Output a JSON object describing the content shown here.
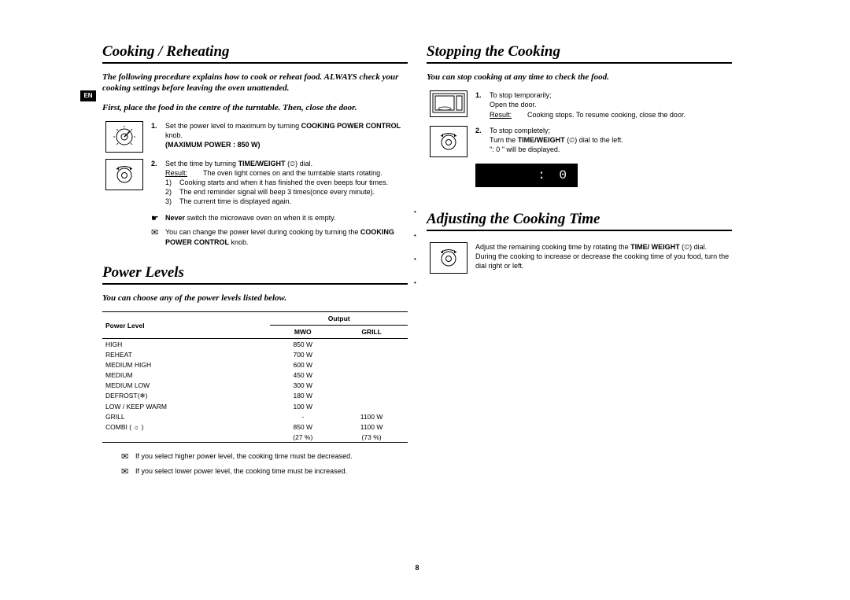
{
  "page_number": "8",
  "lang_badge": "EN",
  "left": {
    "section1": {
      "title": "Cooking / Reheating",
      "intro1": "The following procedure explains how to cook or reheat food. ALWAYS check your cooking settings before leaving the oven unattended.",
      "intro2": "First, place the food in the centre of the turntable. Then, close the door.",
      "step1": {
        "num": "1.",
        "text_a": "Set the power level to maximum by turning ",
        "bold_a": "COOKING POWER CONTROL",
        "text_b": " knob.",
        "bold_b": "(MAXIMUM POWER : 850 W)"
      },
      "step2": {
        "num": "2.",
        "text_a": "Set the time by turning ",
        "bold_a": "TIME/WEIGHT",
        "text_b": " (⏲) dial.",
        "result_label": "Result:",
        "result_text": "The oven light comes on and the turntable starts rotating.",
        "li1_n": "1)",
        "li1": "Cooking starts and when it has finished the oven beeps four times.",
        "li2_n": "2)",
        "li2": "The end reminder signal will beep 3 times(once every minute).",
        "li3_n": "3)",
        "li3": "The current time is displayed again."
      },
      "note1_sym": "☛",
      "note1_a": "Never",
      "note1_b": " switch the microwave oven on when it is empty.",
      "note2_sym": "✉",
      "note2_a": "You can change the power level during cooking by turning the ",
      "note2_b": "COOKING POWER CONTROL",
      "note2_c": " knob."
    },
    "section2": {
      "title": "Power Levels",
      "intro": "You can choose any of the power levels listed below.",
      "headers": {
        "c1": "Power Level",
        "c2": "Output",
        "c2a": "MWO",
        "c2b": "GRILL"
      },
      "rows": [
        {
          "name": "HIGH",
          "mwo": "850 W",
          "grill": ""
        },
        {
          "name": "REHEAT",
          "mwo": "700 W",
          "grill": ""
        },
        {
          "name": "MEDIUM HIGH",
          "mwo": "600 W",
          "grill": ""
        },
        {
          "name": "MEDIUM",
          "mwo": "450 W",
          "grill": ""
        },
        {
          "name": "MEDIUM LOW",
          "mwo": "300 W",
          "grill": ""
        },
        {
          "name": "DEFROST(❄)",
          "mwo": "180 W",
          "grill": ""
        },
        {
          "name": "LOW / KEEP WARM",
          "mwo": "100 W",
          "grill": ""
        },
        {
          "name": "GRILL",
          "mwo": "-",
          "grill": "1100 W"
        },
        {
          "name": "COMBI ( ☼ )",
          "mwo": "850 W",
          "grill": "1100 W"
        },
        {
          "name": "",
          "mwo": "(27 %)",
          "grill": "(73 %)"
        }
      ],
      "note1_sym": "✉",
      "note1": "If you select higher power level, the cooking time must be decreased.",
      "note2_sym": "✉",
      "note2": "If you select lower power level, the cooking time must be increased."
    }
  },
  "right": {
    "section3": {
      "title": "Stopping the Cooking",
      "intro": "You can stop cooking at any time to check the food.",
      "step1": {
        "num": "1.",
        "line1": "To stop temporarily;",
        "line2": "Open the door.",
        "result_label": "Result:",
        "result_text": "Cooking stops. To resume cooking, close the door."
      },
      "step2": {
        "num": "2.",
        "line1": "To stop completely;",
        "line2a": "Turn the ",
        "line2b": "TIME/WEIGHT",
        "line2c": " (⏲) dial to the left.",
        "line3": "\": 0 \" will be displayed.",
        "display": ": 0"
      }
    },
    "section4": {
      "title": "Adjusting the Cooking Time",
      "text_a": "Adjust the remaining cooking time by rotating the ",
      "text_b": "TIME/ WEIGHT",
      "text_c": " (⏲) dial.",
      "text2": "During the cooking to increase or decrease the cooking time of you food, turn the dial right or left."
    }
  }
}
